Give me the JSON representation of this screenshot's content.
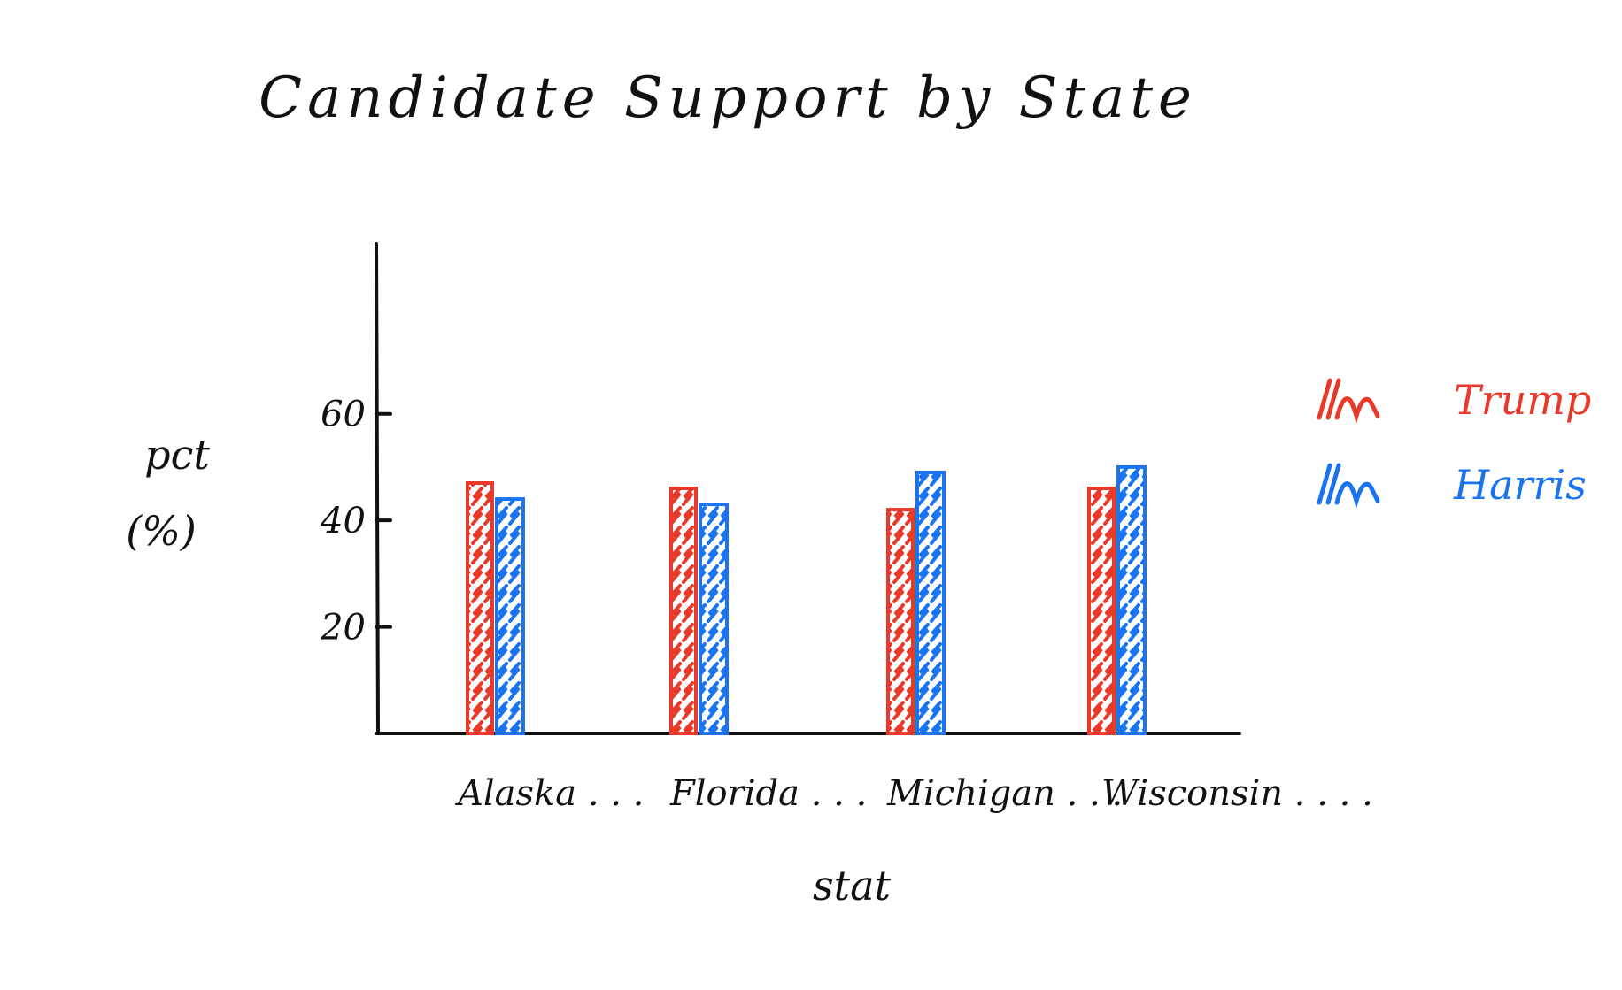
{
  "chart_data": {
    "type": "bar",
    "title": "Candidate Support by State",
    "xlabel": "stat",
    "ylabel_line1": "pct",
    "ylabel_line2": "(%)",
    "categories": [
      "Alaska . . .",
      "Florida . . .",
      "Michigan . . .",
      "Wisconsin . . . ."
    ],
    "series": [
      {
        "name": "Trump",
        "color": "#e8392b",
        "values": [
          47,
          46,
          42,
          46
        ]
      },
      {
        "name": "Harris",
        "color": "#1a73f0",
        "values": [
          44,
          43,
          49,
          50
        ]
      }
    ],
    "yticks": [
      "20",
      "40",
      "60"
    ],
    "ytick_values": [
      20,
      40,
      60
    ],
    "ylim": [
      0,
      90
    ],
    "grid": false,
    "legend_position": "right"
  }
}
